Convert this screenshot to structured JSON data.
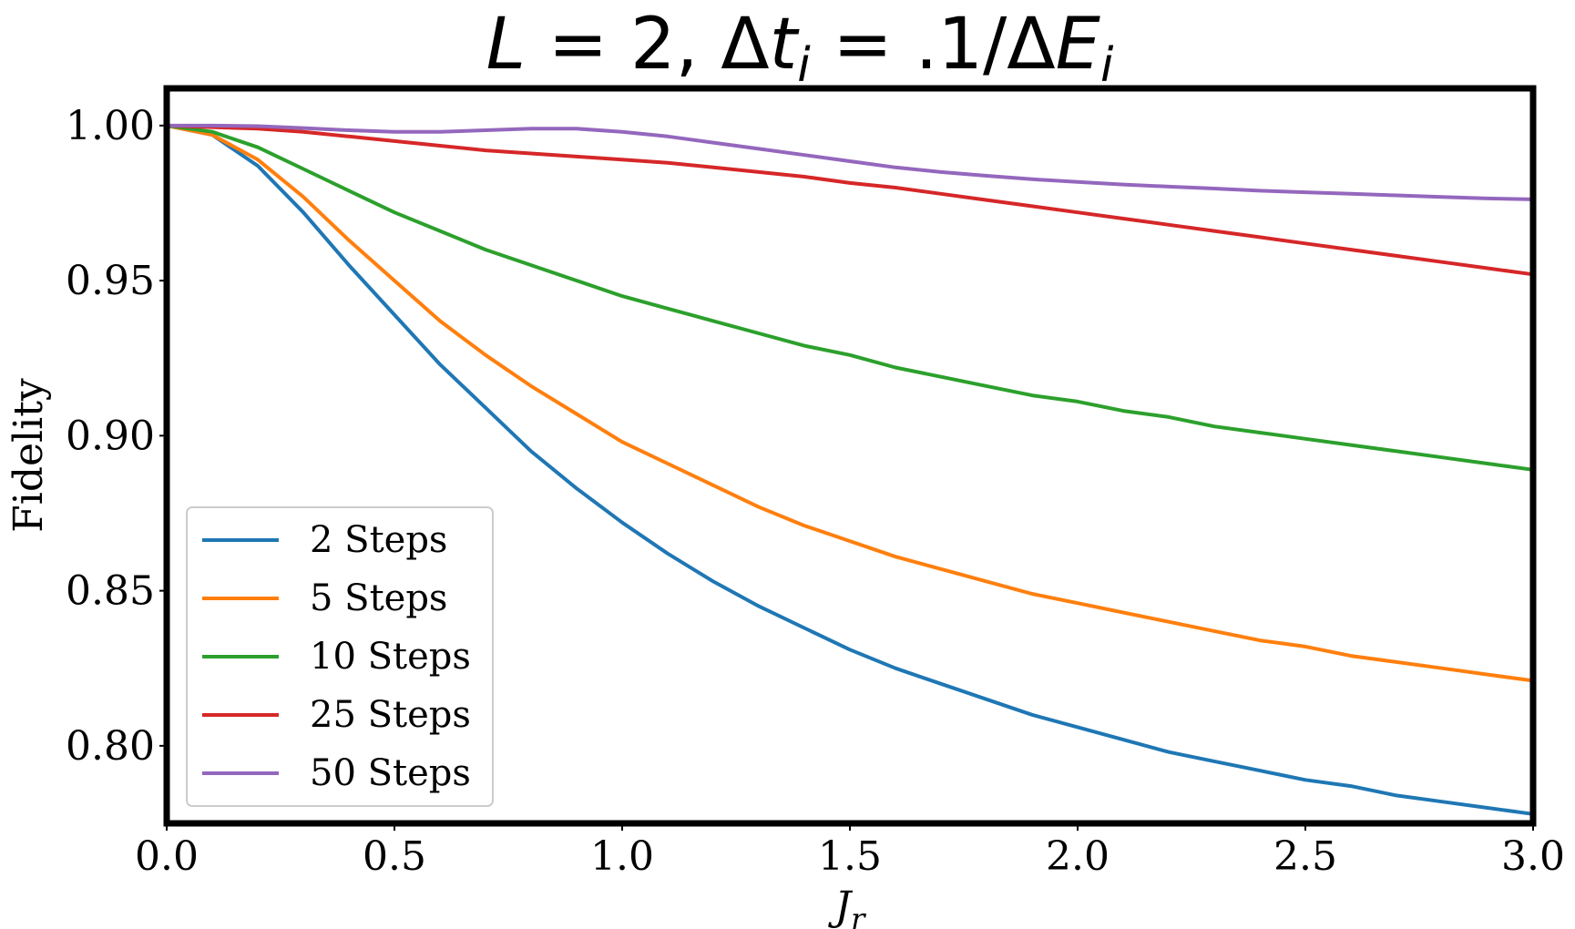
{
  "chart_data": {
    "type": "line",
    "title": "L = 2, Δt_i = .1/ΔE_i",
    "xlabel": "J_r",
    "ylabel": "Fidelity",
    "xlim": [
      0.0,
      3.0
    ],
    "ylim": [
      0.775,
      1.012
    ],
    "xticks": [
      "0.0",
      "0.5",
      "1.0",
      "1.5",
      "2.0",
      "2.5",
      "3.0"
    ],
    "yticks": [
      "0.80",
      "0.85",
      "0.90",
      "0.95",
      "1.00"
    ],
    "grid": false,
    "legend_position": "bottom-left",
    "x": [
      0.0,
      0.1,
      0.2,
      0.3,
      0.4,
      0.5,
      0.6,
      0.7,
      0.8,
      0.9,
      1.0,
      1.1,
      1.2,
      1.3,
      1.4,
      1.5,
      1.6,
      1.7,
      1.8,
      1.9,
      2.0,
      2.1,
      2.2,
      2.3,
      2.4,
      2.5,
      2.6,
      2.7,
      2.8,
      2.9,
      3.0
    ],
    "series": [
      {
        "name": "2 Steps",
        "color": "#1f77b4",
        "values": [
          1.0,
          0.997,
          0.987,
          0.972,
          0.955,
          0.939,
          0.923,
          0.909,
          0.895,
          0.883,
          0.872,
          0.862,
          0.853,
          0.845,
          0.838,
          0.831,
          0.825,
          0.82,
          0.815,
          0.81,
          0.806,
          0.802,
          0.798,
          0.795,
          0.792,
          0.789,
          0.787,
          0.784,
          0.782,
          0.78,
          0.778
        ]
      },
      {
        "name": "5 Steps",
        "color": "#ff7f0e",
        "values": [
          1.0,
          0.997,
          0.989,
          0.977,
          0.963,
          0.95,
          0.937,
          0.926,
          0.916,
          0.907,
          0.898,
          0.891,
          0.884,
          0.877,
          0.871,
          0.866,
          0.861,
          0.857,
          0.853,
          0.849,
          0.846,
          0.843,
          0.84,
          0.837,
          0.834,
          0.832,
          0.829,
          0.827,
          0.825,
          0.823,
          0.821
        ]
      },
      {
        "name": "10 Steps",
        "color": "#2ca02c",
        "values": [
          1.0,
          0.998,
          0.993,
          0.986,
          0.979,
          0.972,
          0.966,
          0.96,
          0.955,
          0.95,
          0.945,
          0.941,
          0.937,
          0.933,
          0.929,
          0.926,
          0.922,
          0.919,
          0.916,
          0.913,
          0.911,
          0.908,
          0.906,
          0.903,
          0.901,
          0.899,
          0.897,
          0.895,
          0.893,
          0.891,
          0.889
        ]
      },
      {
        "name": "25 Steps",
        "color": "#d62728",
        "values": [
          1.0,
          0.9995,
          0.999,
          0.998,
          0.9965,
          0.995,
          0.9935,
          0.992,
          0.991,
          0.99,
          0.989,
          0.988,
          0.9865,
          0.985,
          0.9835,
          0.9815,
          0.98,
          0.978,
          0.976,
          0.974,
          0.972,
          0.97,
          0.968,
          0.966,
          0.964,
          0.962,
          0.96,
          0.958,
          0.956,
          0.954,
          0.952
        ]
      },
      {
        "name": "50 Steps",
        "color": "#9467bd",
        "values": [
          1.0,
          1.0,
          0.9998,
          0.9992,
          0.9985,
          0.998,
          0.998,
          0.9985,
          0.999,
          0.999,
          0.998,
          0.9965,
          0.9945,
          0.9925,
          0.9905,
          0.9885,
          0.9865,
          0.985,
          0.9838,
          0.9827,
          0.9818,
          0.981,
          0.9803,
          0.9797,
          0.979,
          0.9785,
          0.978,
          0.9775,
          0.977,
          0.9765,
          0.9762
        ]
      }
    ]
  }
}
